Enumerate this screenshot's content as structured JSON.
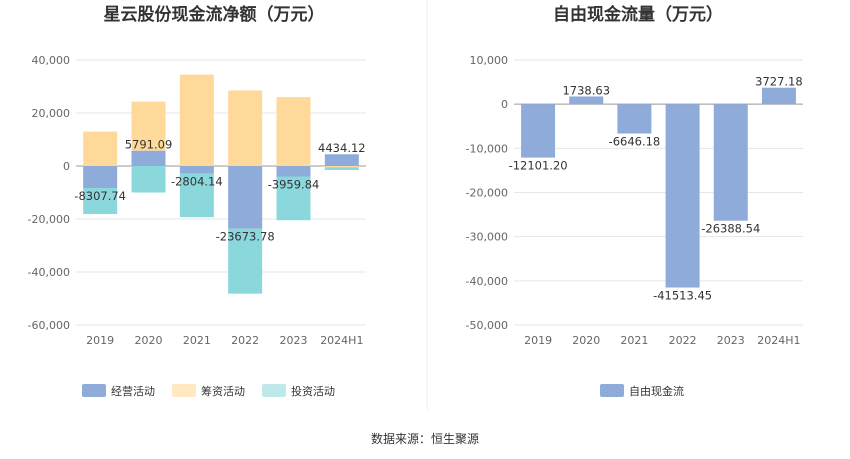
{
  "source_label": "数据来源：恒生聚源",
  "chart_data": [
    {
      "type": "bar",
      "stacked": true,
      "title": "星云股份现金流净额（万元）",
      "categories": [
        "2019",
        "2020",
        "2021",
        "2022",
        "2023",
        "2024H1"
      ],
      "ylim": [
        -60000,
        40000
      ],
      "yticks": [
        40000,
        20000,
        0,
        -20000,
        -40000,
        -60000
      ],
      "ytick_labels": [
        "40,000",
        "20,000",
        "0",
        "-20,000",
        "-40,000",
        "-60,000"
      ],
      "grid": true,
      "legend_position": "bottom",
      "series": [
        {
          "name": "经营活动",
          "color": "#8eabd9",
          "values": [
            -8307.74,
            5791.09,
            -2804.14,
            -23673.78,
            -3959.84,
            4434.12
          ]
        },
        {
          "name": "筹资活动",
          "color": "#ffd99a",
          "values": [
            13000,
            18500,
            34500,
            28500,
            26000,
            -500
          ]
        },
        {
          "name": "投资活动",
          "color": "#8ad7dc",
          "values": [
            -9800,
            -10000,
            -16500,
            -24500,
            -16500,
            -1000
          ]
        }
      ],
      "data_labels": [
        "-8307.74",
        "5791.09",
        "-2804.14",
        "-23673.78",
        "-3959.84",
        "4434.12"
      ]
    },
    {
      "type": "bar",
      "title": "自由现金流量（万元）",
      "categories": [
        "2019",
        "2020",
        "2021",
        "2022",
        "2023",
        "2024H1"
      ],
      "ylim": [
        -50000,
        10000
      ],
      "yticks": [
        10000,
        0,
        -10000,
        -20000,
        -30000,
        -40000,
        -50000
      ],
      "ytick_labels": [
        "10,000",
        "0",
        "-10,000",
        "-20,000",
        "-30,000",
        "-40,000",
        "-50,000"
      ],
      "grid": true,
      "legend_position": "bottom",
      "series": [
        {
          "name": "自由现金流",
          "color": "#8eabd9",
          "values": [
            -12101.2,
            1738.63,
            -6646.18,
            -41513.45,
            -26388.54,
            3727.18
          ]
        }
      ],
      "data_labels": [
        "-12101.20",
        "1738.63",
        "-6646.18",
        "-41513.45",
        "-26388.54",
        "3727.18"
      ]
    }
  ]
}
